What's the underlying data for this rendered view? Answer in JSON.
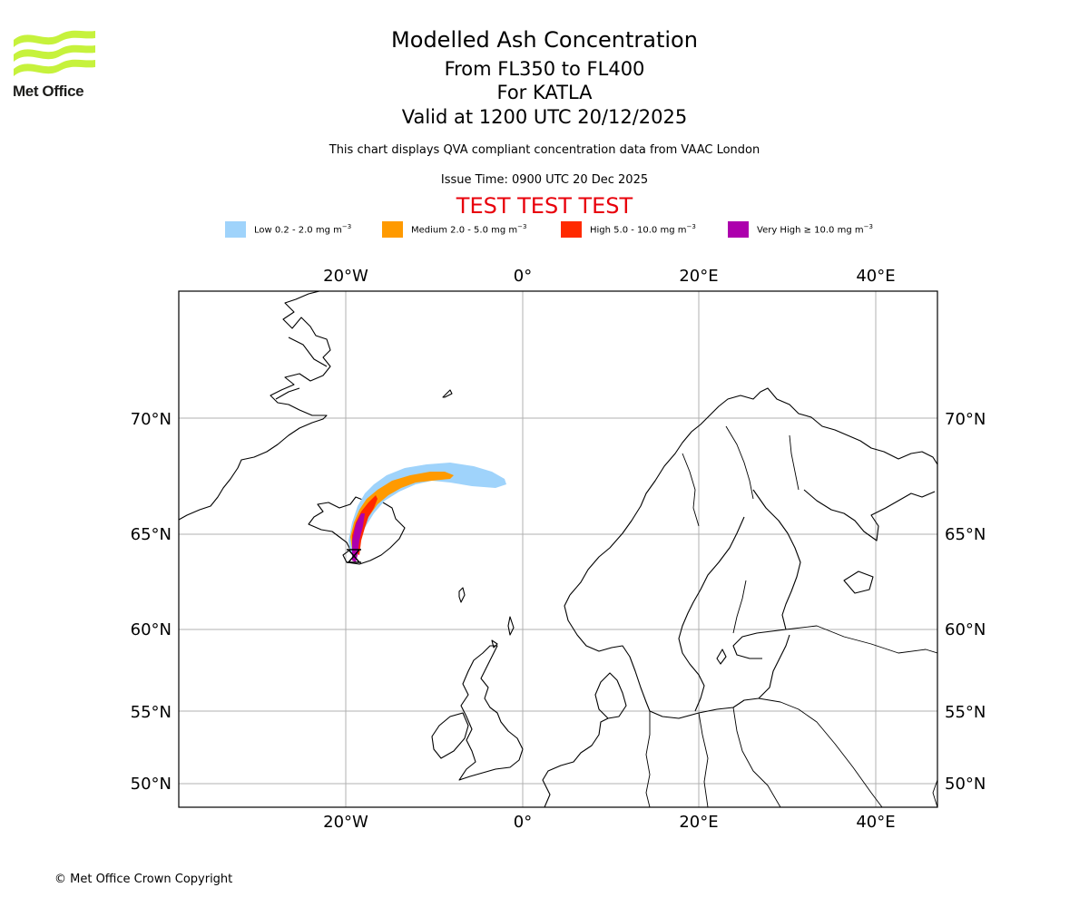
{
  "logo": {
    "text": "Met Office",
    "brand_color": "#c6f23c"
  },
  "title": {
    "line1": "Modelled Ash Concentration",
    "line2": "From FL350 to FL400",
    "line3": "For KATLA",
    "line4": "Valid at 1200 UTC 20/12/2025"
  },
  "subtitle": {
    "compliance": "This chart displays QVA compliant concentration data from VAAC London",
    "issue_time": "Issue Time: 0900 UTC 20 Dec 2025",
    "test_banner": "TEST TEST TEST"
  },
  "legend": [
    {
      "label": "Low 0.2 - 2.0 mg m",
      "unit_exp": "−3",
      "color": "#9fd3fb"
    },
    {
      "label": "Medium 2.0 - 5.0 mg m",
      "unit_exp": "−3",
      "color": "#ff9a00"
    },
    {
      "label": "High 5.0 - 10.0 mg m",
      "unit_exp": "−3",
      "color": "#ff2a00"
    },
    {
      "label": "Very High ≥ 10.0 mg m",
      "unit_exp": "−3",
      "color": "#ad00ad"
    }
  ],
  "map": {
    "longitude_labels": [
      "20°W",
      "0°",
      "20°E",
      "40°E"
    ],
    "latitude_labels": [
      "70°N",
      "65°N",
      "60°N",
      "55°N",
      "50°N"
    ],
    "volcano": "KATLA"
  },
  "footer": {
    "copyright": "© Met Office Crown Copyright"
  }
}
